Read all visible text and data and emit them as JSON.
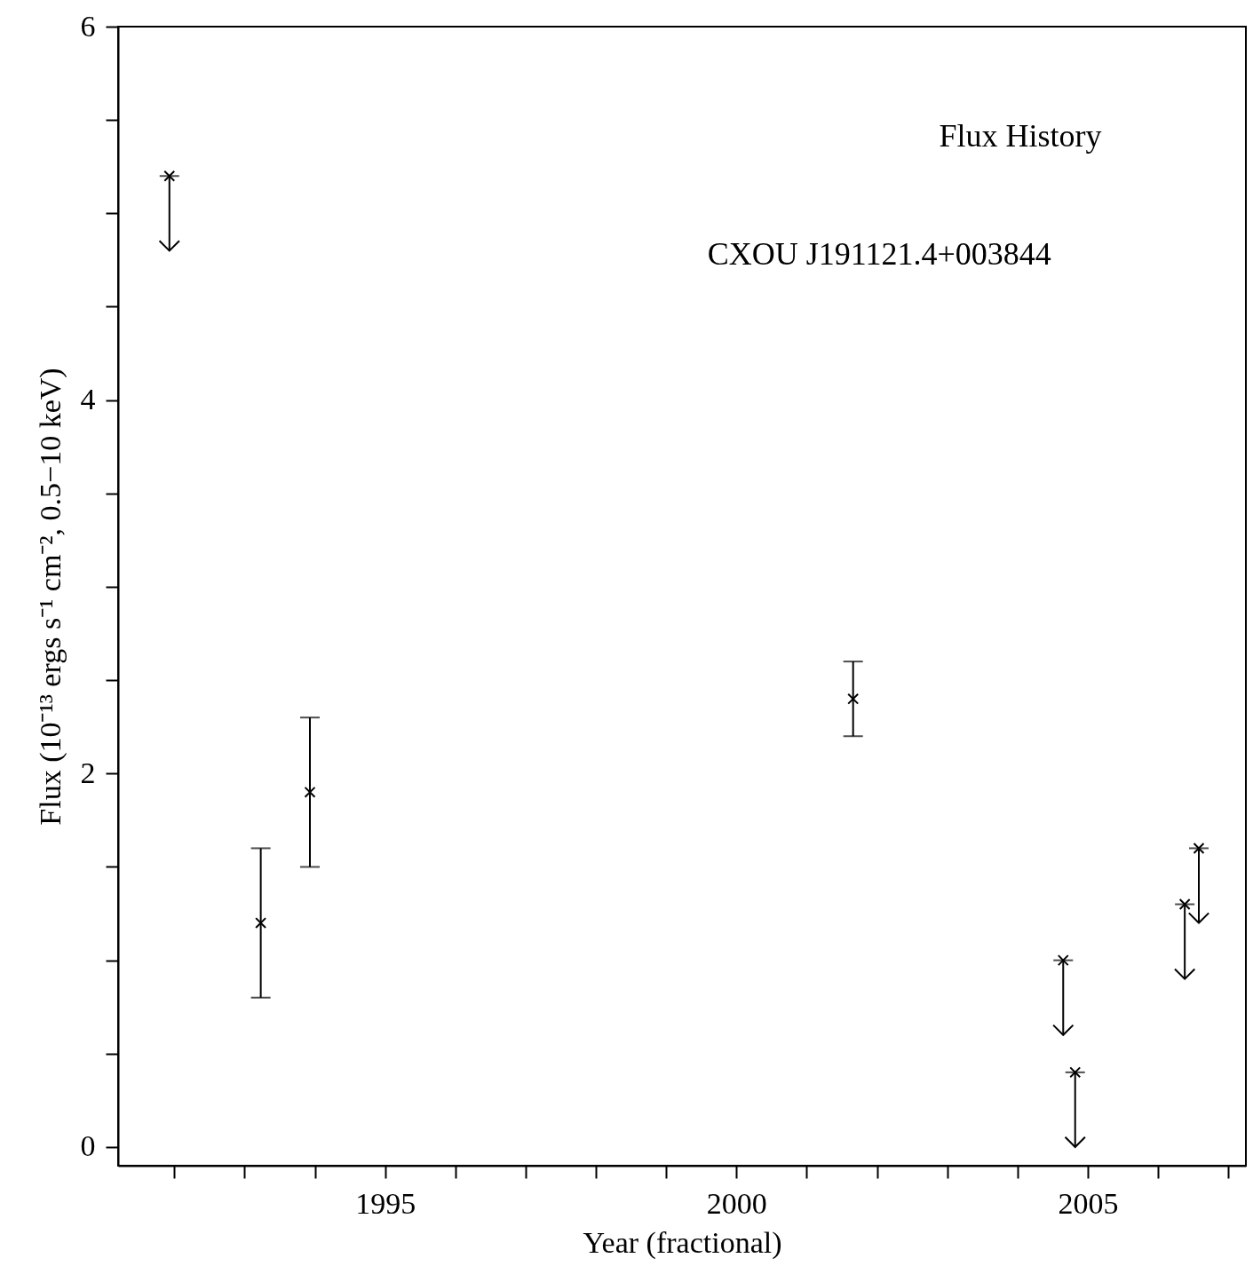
{
  "chart_data": {
    "type": "scatter",
    "xlabel": "Year (fractional)",
    "ylabel": "Flux (10⁻¹³ ergs s⁻¹ cm⁻², 0.5−10 keV)",
    "annotations": [
      "Flux History",
      "CXOU J191121.4+003844"
    ],
    "xlim": [
      1991.2,
      2007.25
    ],
    "xticks": [
      {
        "value": 1992,
        "label": null
      },
      {
        "value": 1993,
        "label": null
      },
      {
        "value": 1994,
        "label": null
      },
      1995,
      {
        "value": 1996,
        "label": null
      },
      {
        "value": 1997,
        "label": null
      },
      {
        "value": 1998,
        "label": null
      },
      {
        "value": 1999,
        "label": null
      },
      2000,
      {
        "value": 2001,
        "label": null
      },
      {
        "value": 2002,
        "label": null
      },
      {
        "value": 2003,
        "label": null
      },
      {
        "value": 2004,
        "label": null
      },
      2005,
      {
        "value": 2006,
        "label": null
      },
      {
        "value": 2007,
        "label": null
      }
    ],
    "ylim": [
      -0.1,
      6
    ],
    "yticks": [
      0,
      {
        "value": 0.5,
        "label": null
      },
      {
        "value": 1,
        "label": null
      },
      {
        "value": 1.5,
        "label": null
      },
      2,
      {
        "value": 2.5,
        "label": null
      },
      {
        "value": 3,
        "label": null
      },
      {
        "value": 3.5,
        "label": null
      },
      4,
      {
        "value": 4.5,
        "label": null
      },
      {
        "value": 5,
        "label": null
      },
      {
        "value": 5.5,
        "label": null
      },
      6
    ],
    "marker": "cross",
    "grid": false,
    "series": [
      {
        "color": "#000000",
        "x": [
          1993.23,
          1993.93,
          2001.66
        ],
        "values": [
          1.2,
          1.9,
          2.4
        ],
        "errors": [
          [
            0.8,
            1.6
          ],
          [
            1.5,
            2.3
          ],
          [
            2.2,
            2.6
          ]
        ]
      },
      {
        "color": "#000000",
        "x": [
          1991.93,
          2004.65,
          2004.82,
          2006.38,
          2006.58
        ],
        "values": [
          5.2,
          1.0,
          0.4,
          1.3,
          1.6
        ],
        "errors": [
          [
            4.8,
            5.2
          ],
          [
            0.6,
            1.0
          ],
          [
            0.0,
            0.4
          ],
          [
            0.9,
            1.3
          ],
          [
            1.2,
            1.6
          ]
        ]
      }
    ]
  }
}
